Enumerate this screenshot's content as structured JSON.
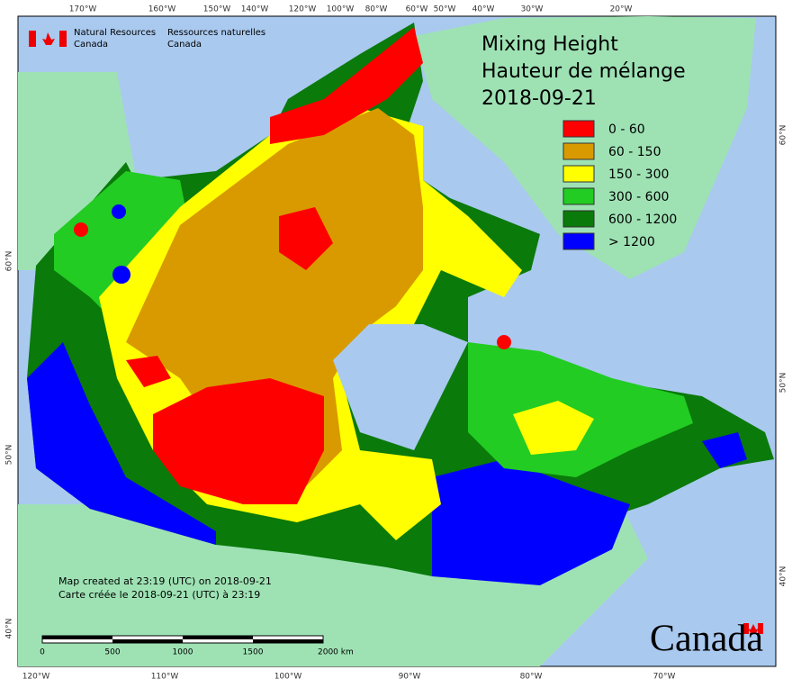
{
  "header": {
    "agency_en": [
      "Natural Resources",
      "Canada"
    ],
    "agency_fr": [
      "Ressources naturelles",
      "Canada"
    ]
  },
  "title": [
    "Mixing Height",
    "Hauteur de mélange",
    "2018-09-21"
  ],
  "legend": [
    {
      "label": "0 - 60",
      "color": "#ff0000"
    },
    {
      "label": "60 - 150",
      "color": "#d99a00"
    },
    {
      "label": "150 - 300",
      "color": "#ffff00"
    },
    {
      "label": "300 - 600",
      "color": "#22cc22"
    },
    {
      "label": "600 - 1200",
      "color": "#0a7a0a"
    },
    {
      "label": "> 1200",
      "color": "#0000ff"
    }
  ],
  "graticule": {
    "top": [
      "170°W",
      "160°W",
      "150°W",
      "140°W",
      "120°W",
      "100°W",
      "80°W",
      "60°W",
      "50°W",
      "40°W",
      "30°W",
      "20°W"
    ],
    "bottom": [
      "120°W",
      "110°W",
      "100°W",
      "90°W",
      "80°W",
      "70°W"
    ],
    "left": [
      "60°N",
      "50°N",
      "40°N"
    ],
    "right": [
      "60°N",
      "50°N",
      "40°N"
    ]
  },
  "credits": [
    "Map created at 23:19 (UTC) on 2018-09-21",
    "Carte créée le 2018-09-21 (UTC) à 23:19"
  ],
  "scale_bar": [
    "0",
    "500",
    "1000",
    "1500",
    "2000 km"
  ],
  "wordmark": "Canada"
}
